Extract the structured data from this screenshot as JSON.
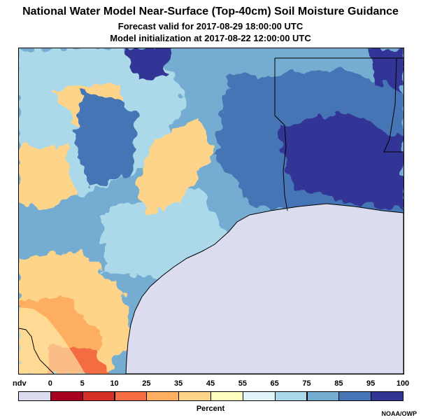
{
  "header": {
    "title": "National Water Model Near-Surface (Top-40cm) Soil Moisture Guidance",
    "forecast_valid": "Forecast valid for 2017-08-29 18:00:00 UTC",
    "model_init": "Model initialization at 2017-08-22 12:00:00 UTC"
  },
  "legend": {
    "unit": "Percent",
    "ticks": [
      "ndv",
      "0",
      "5",
      "10",
      "25",
      "35",
      "45",
      "55",
      "65",
      "75",
      "85",
      "95",
      "100"
    ],
    "colors": [
      "#dcdcf0",
      "#a5001e",
      "#d73027",
      "#f46d43",
      "#fdae61",
      "#fdd48a",
      "#ffffbf",
      "#e0f3f8",
      "#abd9e9",
      "#74add1",
      "#4575b4",
      "#313695"
    ]
  },
  "credit": "NOAA/OWP",
  "map_colors": {
    "water": "#dcdcf0",
    "very_wet": "#313695",
    "wet": "#4575b4",
    "moist": "#74add1",
    "damp": "#abd9e9",
    "normal": "#e0f3f8",
    "dry": "#fdd48a",
    "drier": "#fdae61",
    "very_dry": "#f46d43"
  }
}
